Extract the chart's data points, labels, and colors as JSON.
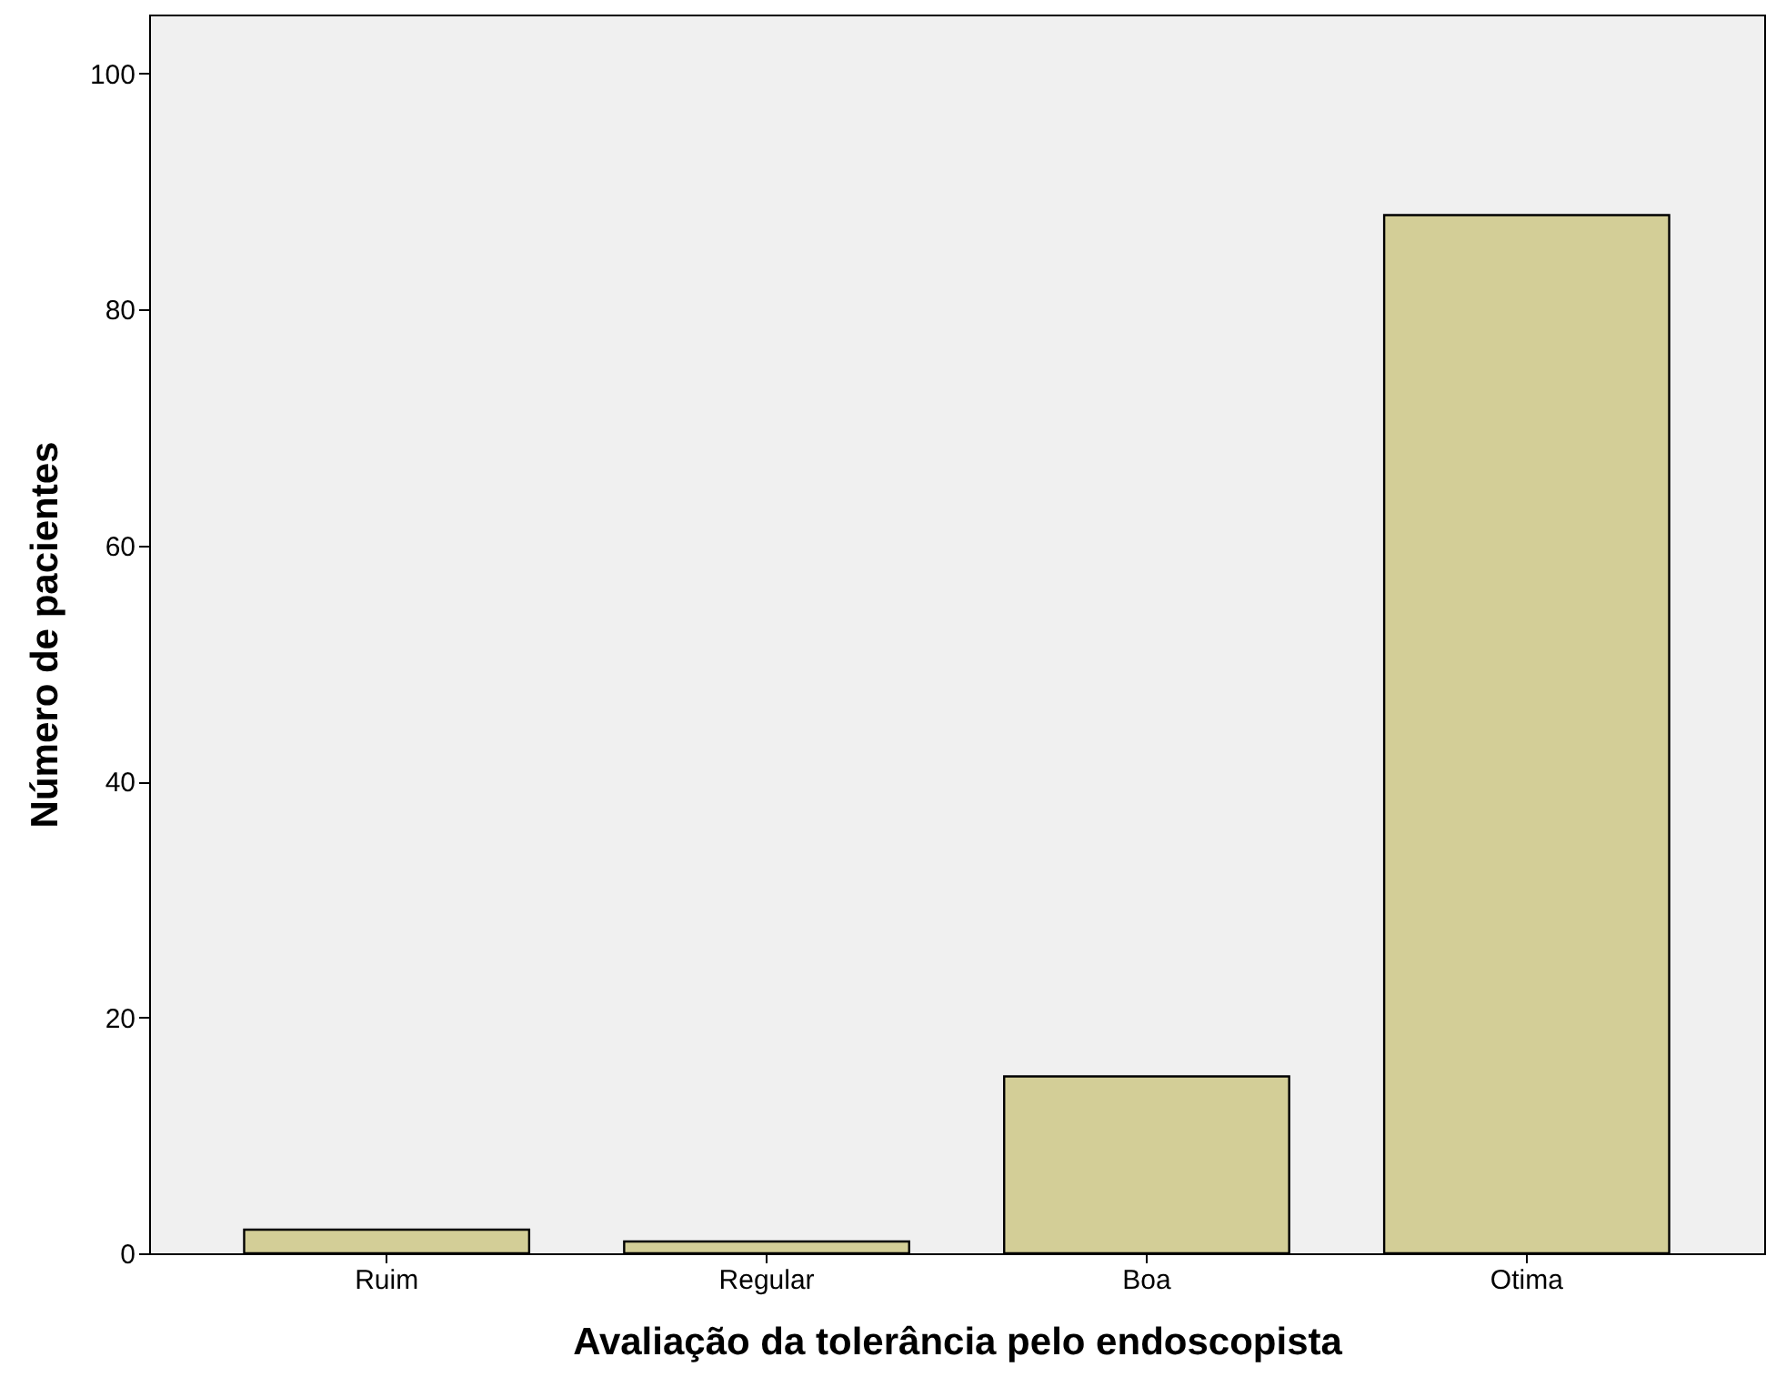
{
  "chart_data": {
    "type": "bar",
    "xlabel": "Avaliação da tolerância pelo endoscopista",
    "ylabel": "Número de pacientes",
    "categories": [
      "Ruim",
      "Regular",
      "Boa",
      "Otima"
    ],
    "values": [
      2,
      1,
      15,
      88
    ],
    "color": "#d3ce97",
    "ylim": [
      0,
      105
    ],
    "yticks": [
      0,
      20,
      40,
      60,
      80,
      100
    ],
    "grid": false
  }
}
